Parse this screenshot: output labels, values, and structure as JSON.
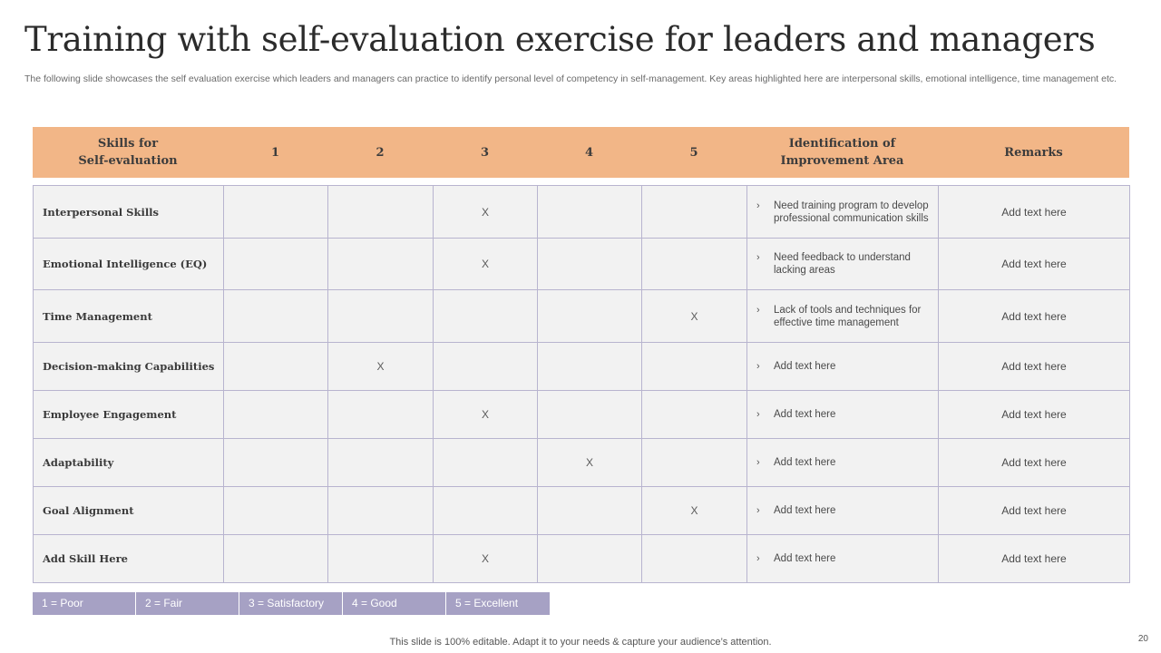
{
  "slide": {
    "title": "Training with self-evaluation exercise for leaders and managers",
    "subtitle": "The following slide showcases the self evaluation exercise which leaders and managers can practice to identify personal level of competency in self-management. Key areas highlighted here are interpersonal skills, emotional intelligence, time management etc.",
    "footer": "This slide is 100% editable. Adapt it to your needs & capture your audience’s attention.",
    "page_number": "20"
  },
  "table": {
    "headers": [
      "Skills for\nSelf-evaluation",
      "1",
      "2",
      "3",
      "4",
      "5",
      "Identification of\nImprovement Area",
      "Remarks"
    ],
    "rows": [
      {
        "skill": "Interpersonal Skills",
        "marks": [
          "",
          "",
          "X",
          "",
          ""
        ],
        "improvement": "Need training program to develop professional communication skills",
        "remark": "Add text here"
      },
      {
        "skill": "Emotional Intelligence (EQ)",
        "marks": [
          "",
          "",
          "X",
          "",
          ""
        ],
        "improvement": "Need feedback to understand lacking areas",
        "remark": "Add text here"
      },
      {
        "skill": "Time Management",
        "marks": [
          "",
          "",
          "",
          "",
          "X"
        ],
        "improvement": "Lack of tools and techniques for effective time management",
        "remark": "Add text here"
      },
      {
        "skill": "Decision-making Capabilities",
        "marks": [
          "",
          "X",
          "",
          "",
          ""
        ],
        "improvement": "Add text here",
        "remark": "Add text here"
      },
      {
        "skill": "Employee Engagement",
        "marks": [
          "",
          "",
          "X",
          "",
          ""
        ],
        "improvement": "Add text here",
        "remark": "Add text here"
      },
      {
        "skill": "Adaptability",
        "marks": [
          "",
          "",
          "",
          "X",
          ""
        ],
        "improvement": "Add text here",
        "remark": "Add text here"
      },
      {
        "skill": "Goal Alignment",
        "marks": [
          "",
          "",
          "",
          "",
          "X"
        ],
        "improvement": "Add text here",
        "remark": "Add text here"
      },
      {
        "skill": "Add Skill Here",
        "marks": [
          "",
          "",
          "X",
          "",
          ""
        ],
        "improvement": "Add text here",
        "remark": "Add text here"
      }
    ]
  },
  "legend": [
    "1 = Poor",
    "2 = Fair",
    "3 = Satisfactory",
    "4 = Good",
    "5 = Excellent"
  ],
  "colors": {
    "header_band": "#f2b687",
    "legend_fill": "#a6a1c4",
    "cell_fill": "#f2f2f2",
    "grid_line": "#b8b4cf"
  },
  "icons": {
    "bullet": "chevron-right-icon"
  }
}
